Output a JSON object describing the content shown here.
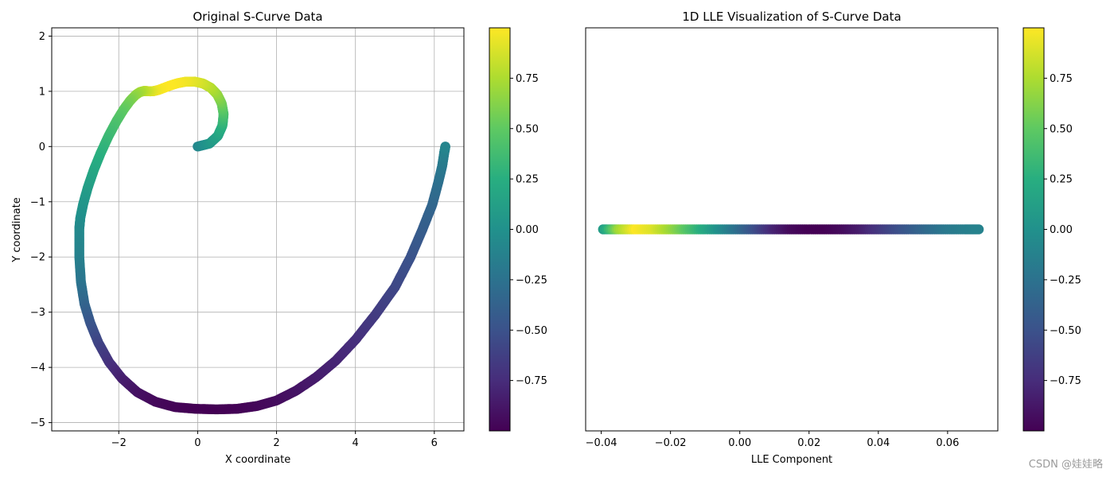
{
  "chart_data": [
    {
      "type": "scatter",
      "title": "Original S-Curve Data",
      "xlabel": "X coordinate",
      "ylabel": "Y coordinate",
      "xlim": [
        -3.7,
        6.75
      ],
      "ylim": [
        -5.15,
        2.15
      ],
      "grid": true,
      "xticks": [
        -2,
        0,
        2,
        4,
        6
      ],
      "yticks": [
        -5,
        -4,
        -3,
        -2,
        -1,
        0,
        1,
        2
      ],
      "xtick_labels": [
        "−2",
        "0",
        "2",
        "4",
        "6"
      ],
      "ytick_labels": [
        "−5",
        "−4",
        "−3",
        "−2",
        "−1",
        "0",
        "1",
        "2"
      ],
      "series": [
        {
          "x": [
            0.0,
            0.301,
            0.511,
            0.628,
            0.658,
            0.61,
            0.498,
            0.335,
            0.138,
            -0.078,
            -0.299,
            -0.509,
            -0.697,
            -0.859,
            -0.993,
            -1.104,
            -1.196,
            -1.28,
            -1.364,
            -1.458,
            -1.571,
            -1.709,
            -1.873,
            -2.058,
            -2.255,
            -2.452,
            -2.634,
            -2.788,
            -2.904,
            -2.975,
            -3.0,
            -3.0,
            -2.96,
            -2.87,
            -2.72,
            -2.52,
            -2.25,
            -1.92,
            -1.53,
            -1.08,
            -0.57,
            -0.05,
            0.48,
            1.0,
            1.5,
            2.0,
            2.5,
            3.0,
            3.5,
            4.0,
            4.5,
            5.0,
            5.4,
            5.7,
            5.95,
            6.1,
            6.2,
            6.25,
            6.28
          ],
          "y": [
            0.0,
            0.054,
            0.192,
            0.38,
            0.584,
            0.778,
            0.941,
            1.063,
            1.141,
            1.176,
            1.175,
            1.147,
            1.105,
            1.061,
            1.025,
            1.005,
            1.0,
            1.004,
            1.006,
            0.988,
            0.935,
            0.833,
            0.675,
            0.46,
            0.196,
            -0.106,
            -0.427,
            -0.748,
            -1.045,
            -1.295,
            -1.479,
            -2.0,
            -2.45,
            -2.85,
            -3.2,
            -3.55,
            -3.9,
            -4.2,
            -4.45,
            -4.62,
            -4.72,
            -4.75,
            -4.76,
            -4.75,
            -4.7,
            -4.6,
            -4.42,
            -4.18,
            -3.88,
            -3.5,
            -3.05,
            -2.55,
            -2.0,
            -1.5,
            -1.05,
            -0.65,
            -0.35,
            -0.12,
            0.0
          ],
          "color_values": [
            -0.08,
            0.04,
            0.14,
            0.26,
            0.4,
            0.54,
            0.66,
            0.76,
            0.84,
            0.9,
            0.95,
            0.98,
            0.995,
            1.0,
            0.98,
            0.95,
            0.9,
            0.85,
            0.8,
            0.74,
            0.68,
            0.6,
            0.52,
            0.44,
            0.36,
            0.28,
            0.2,
            0.12,
            0.05,
            0.0,
            -0.05,
            -0.12,
            -0.22,
            -0.34,
            -0.46,
            -0.58,
            -0.7,
            -0.82,
            -0.9,
            -0.95,
            -0.98,
            -1.0,
            -1.0,
            -0.99,
            -0.97,
            -0.94,
            -0.9,
            -0.85,
            -0.8,
            -0.74,
            -0.66,
            -0.58,
            -0.5,
            -0.42,
            -0.35,
            -0.28,
            -0.2,
            -0.14,
            -0.1
          ]
        }
      ],
      "colorbar": {
        "cmap": "viridis",
        "range": [
          -1.0,
          1.0
        ],
        "ticks": [
          0.75,
          0.5,
          0.25,
          0.0,
          -0.25,
          -0.5,
          -0.75
        ],
        "tick_labels": [
          "0.75",
          "0.50",
          "0.25",
          "0.00",
          "−0.25",
          "−0.50",
          "−0.75"
        ]
      }
    },
    {
      "type": "scatter",
      "title": "1D LLE Visualization of S-Curve Data",
      "xlabel": "LLE Component",
      "xlim": [
        -0.0445,
        0.0745
      ],
      "ylim": [
        -0.058,
        0.058
      ],
      "grid": false,
      "xticks": [
        -0.04,
        -0.02,
        0.0,
        0.02,
        0.04,
        0.06
      ],
      "xtick_labels": [
        "−0.04",
        "−0.02",
        "0.00",
        "0.02",
        "0.04",
        "0.06"
      ],
      "series": [
        {
          "x": [
            -0.0395,
            -0.035,
            -0.03,
            -0.025,
            -0.02,
            -0.015,
            -0.01,
            -0.005,
            0.0,
            0.005,
            0.01,
            0.015,
            0.02,
            0.025,
            0.03,
            0.035,
            0.04,
            0.045,
            0.05,
            0.055,
            0.06,
            0.065,
            0.069
          ],
          "y": [
            0,
            0,
            0,
            0,
            0,
            0,
            0,
            0,
            0,
            0,
            0,
            0,
            0,
            0,
            0,
            0,
            0,
            0,
            0,
            0,
            0,
            0,
            0
          ],
          "color_values": [
            0.1,
            0.7,
            1.0,
            0.9,
            0.7,
            0.45,
            0.2,
            -0.05,
            -0.3,
            -0.55,
            -0.8,
            -0.95,
            -1.0,
            -1.0,
            -0.95,
            -0.85,
            -0.7,
            -0.55,
            -0.42,
            -0.3,
            -0.2,
            -0.15,
            -0.12
          ]
        }
      ],
      "colorbar": {
        "cmap": "viridis",
        "range": [
          -1.0,
          1.0
        ],
        "ticks": [
          0.75,
          0.5,
          0.25,
          0.0,
          -0.25,
          -0.5,
          -0.75
        ],
        "tick_labels": [
          "0.75",
          "0.50",
          "0.25",
          "0.00",
          "−0.25",
          "−0.50",
          "−0.75"
        ]
      }
    }
  ],
  "watermark": "CSDN @娃娃略"
}
